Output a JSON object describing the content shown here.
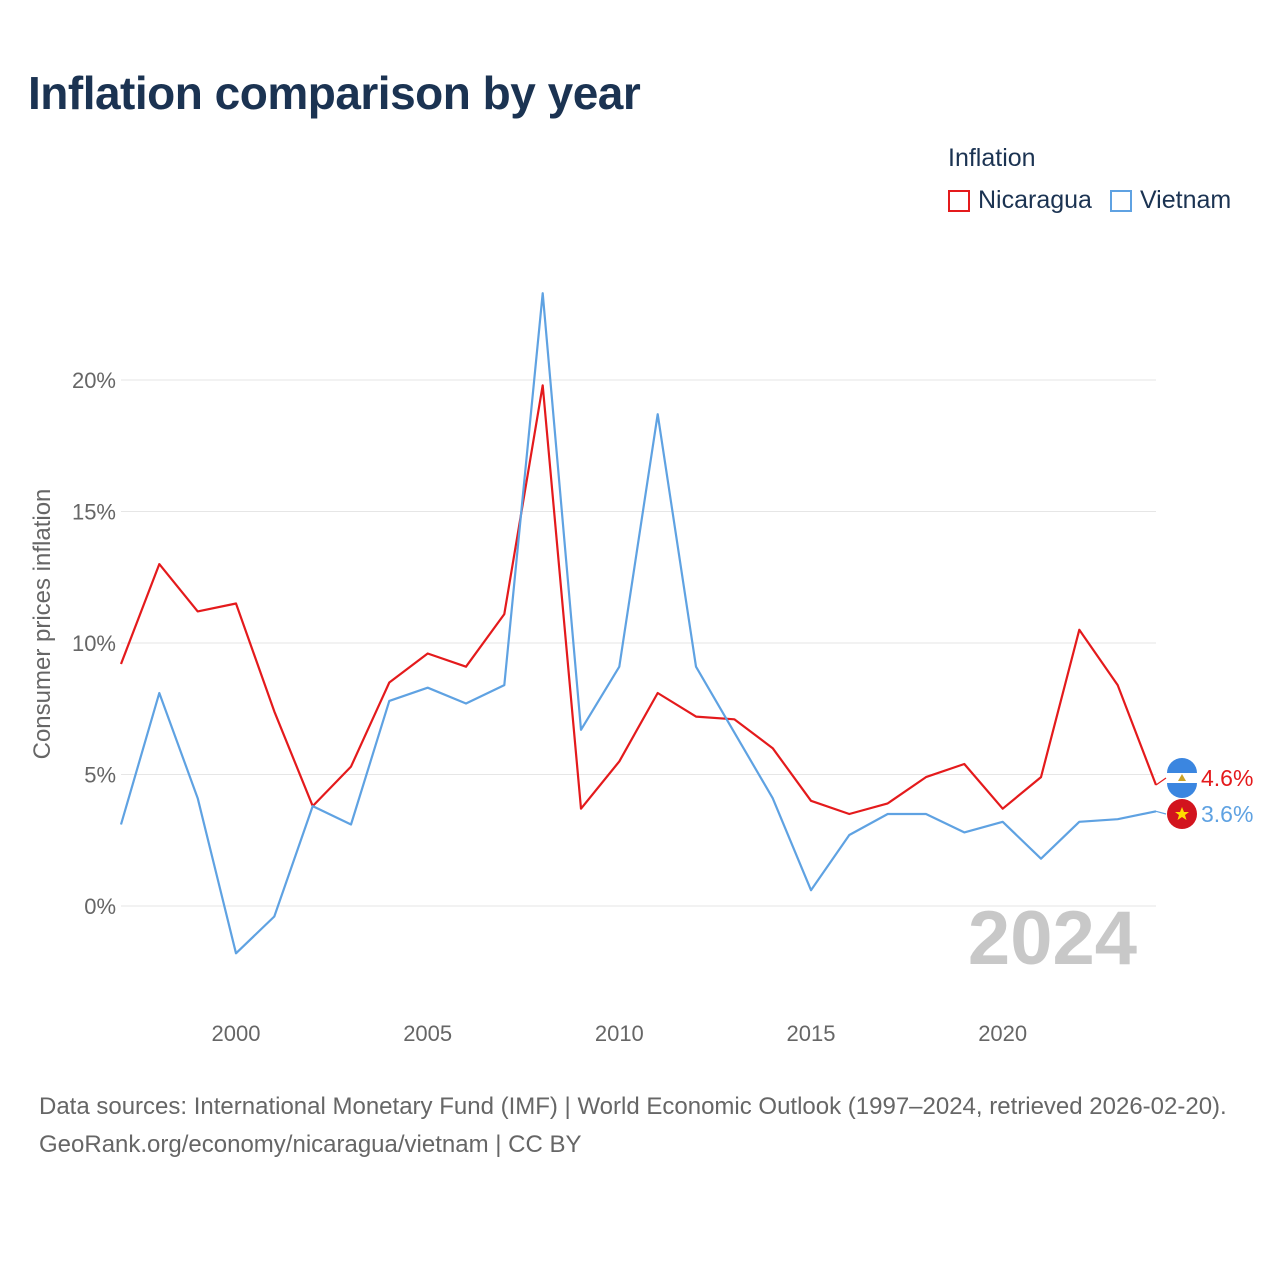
{
  "title": "Inflation comparison by year",
  "legend": {
    "title": "Inflation",
    "items": [
      {
        "name": "Nicaragua",
        "color": "#e41a1c"
      },
      {
        "name": "Vietnam",
        "color": "#5fa2e2"
      }
    ]
  },
  "chart_data": {
    "type": "line",
    "ylabel": "Consumer prices inflation",
    "xlabel": "",
    "ylim": [
      -4,
      25
    ],
    "xlim": [
      1997,
      2024
    ],
    "yticks": [
      0,
      5,
      10,
      15,
      20
    ],
    "ytick_labels": [
      "0%",
      "5%",
      "10%",
      "15%",
      "20%"
    ],
    "xticks": [
      2000,
      2005,
      2010,
      2015,
      2020
    ],
    "xtick_labels": [
      "2000",
      "2005",
      "2010",
      "2015",
      "2020"
    ],
    "grid": true,
    "x": [
      1997,
      1998,
      1999,
      2000,
      2001,
      2002,
      2003,
      2004,
      2005,
      2006,
      2007,
      2008,
      2009,
      2010,
      2011,
      2012,
      2013,
      2014,
      2015,
      2016,
      2017,
      2018,
      2019,
      2020,
      2021,
      2022,
      2023,
      2024
    ],
    "series": [
      {
        "name": "Nicaragua",
        "color": "#e41a1c",
        "end_label": "4.6%",
        "values": [
          9.2,
          13.0,
          11.2,
          11.5,
          7.4,
          3.8,
          5.3,
          8.5,
          9.6,
          9.1,
          11.1,
          19.8,
          3.7,
          5.5,
          8.1,
          7.2,
          7.1,
          6.0,
          4.0,
          3.5,
          3.9,
          4.9,
          5.4,
          3.7,
          4.9,
          10.5,
          8.4,
          4.6
        ]
      },
      {
        "name": "Vietnam",
        "color": "#5fa2e2",
        "end_label": "3.6%",
        "values": [
          3.1,
          8.1,
          4.1,
          -1.8,
          -0.4,
          3.8,
          3.1,
          7.8,
          8.3,
          7.7,
          8.4,
          23.3,
          6.7,
          9.1,
          18.7,
          9.1,
          6.6,
          4.1,
          0.6,
          2.7,
          3.5,
          3.5,
          2.8,
          3.2,
          1.8,
          3.2,
          3.3,
          3.6
        ]
      }
    ],
    "watermark_year": "2024"
  },
  "footer": {
    "sources": "Data sources: International Monetary Fund (IMF) | World Economic Outlook (1997–2024, retrieved 2026-02-20).",
    "credit": "GeoRank.org/economy/nicaragua/vietnam | CC BY"
  }
}
